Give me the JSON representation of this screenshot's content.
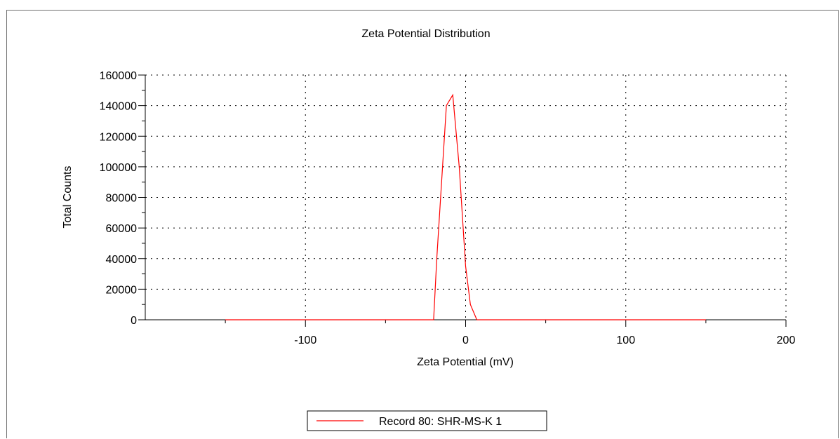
{
  "chart_data": {
    "type": "line",
    "title": "Zeta Potential Distribution",
    "xlabel": "Zeta Potential (mV)",
    "ylabel": "Total Counts",
    "xlim": [
      -200,
      200
    ],
    "ylim": [
      0,
      160000
    ],
    "x_ticks": [
      -100,
      0,
      100,
      200
    ],
    "y_ticks": [
      0,
      20000,
      40000,
      60000,
      80000,
      100000,
      120000,
      140000,
      160000
    ],
    "grid": true,
    "legend": "bottom-center",
    "series": [
      {
        "name": "Record 80: SHR-MS-K 1",
        "color": "#ff0000",
        "x": [
          -150,
          -20,
          -18,
          -12,
          -8,
          -4,
          0,
          3,
          7,
          150
        ],
        "y": [
          0,
          0,
          40000,
          140000,
          147000,
          100000,
          35000,
          10000,
          0,
          0
        ]
      }
    ]
  }
}
